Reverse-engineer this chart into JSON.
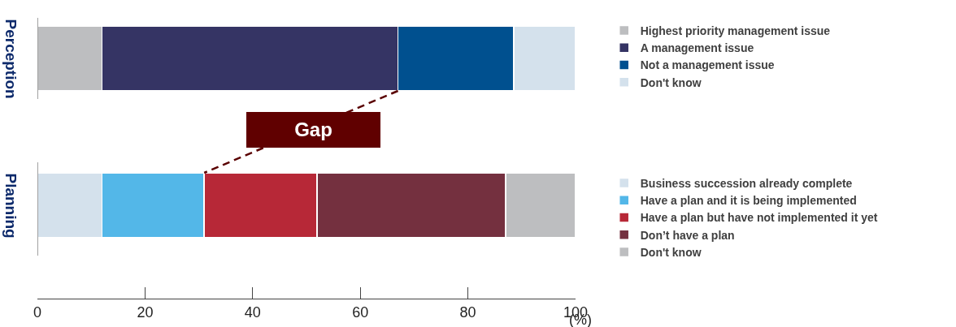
{
  "chart_data": [
    {
      "type": "bar",
      "orientation": "horizontal",
      "stacked": true,
      "ylabel": "Perception",
      "categories": [
        null
      ],
      "xlim": [
        0,
        100
      ],
      "tick_labels": false,
      "legend": "right",
      "annotations": [
        "Gap"
      ],
      "series": [
        {
          "name": "Highest priority management issue",
          "color": "#bdbec0",
          "values": [
            12
          ]
        },
        {
          "name": "A management issue",
          "color": "#353464",
          "values": [
            55
          ]
        },
        {
          "name": "Not a management issue",
          "color": "#00508f",
          "values": [
            21.5
          ]
        },
        {
          "name": "Don't know",
          "color": "#d4e1ec",
          "values": [
            11.5
          ]
        }
      ]
    },
    {
      "type": "bar",
      "orientation": "horizontal",
      "stacked": true,
      "ylabel": "Planning",
      "xlabel": "(%)",
      "categories": [
        null
      ],
      "xlim": [
        0,
        100
      ],
      "xticks": [
        0,
        20,
        40,
        60,
        80,
        100
      ],
      "tick_labels": "x",
      "legend": "right",
      "series": [
        {
          "name": "Business succession already complete",
          "color": "#d4e1ec",
          "values": [
            12
          ]
        },
        {
          "name": "Have a plan and it is being implemented",
          "color": "#53b7e8",
          "values": [
            19
          ]
        },
        {
          "name": "Have a plan but have not implemented it yet",
          "color": "#b72837",
          "values": [
            21
          ]
        },
        {
          "name": "Don’t have a plan",
          "color": "#74303f",
          "values": [
            35
          ]
        },
        {
          "name": "Don't know",
          "color": "#bdbec0",
          "values": [
            13
          ]
        }
      ]
    }
  ]
}
